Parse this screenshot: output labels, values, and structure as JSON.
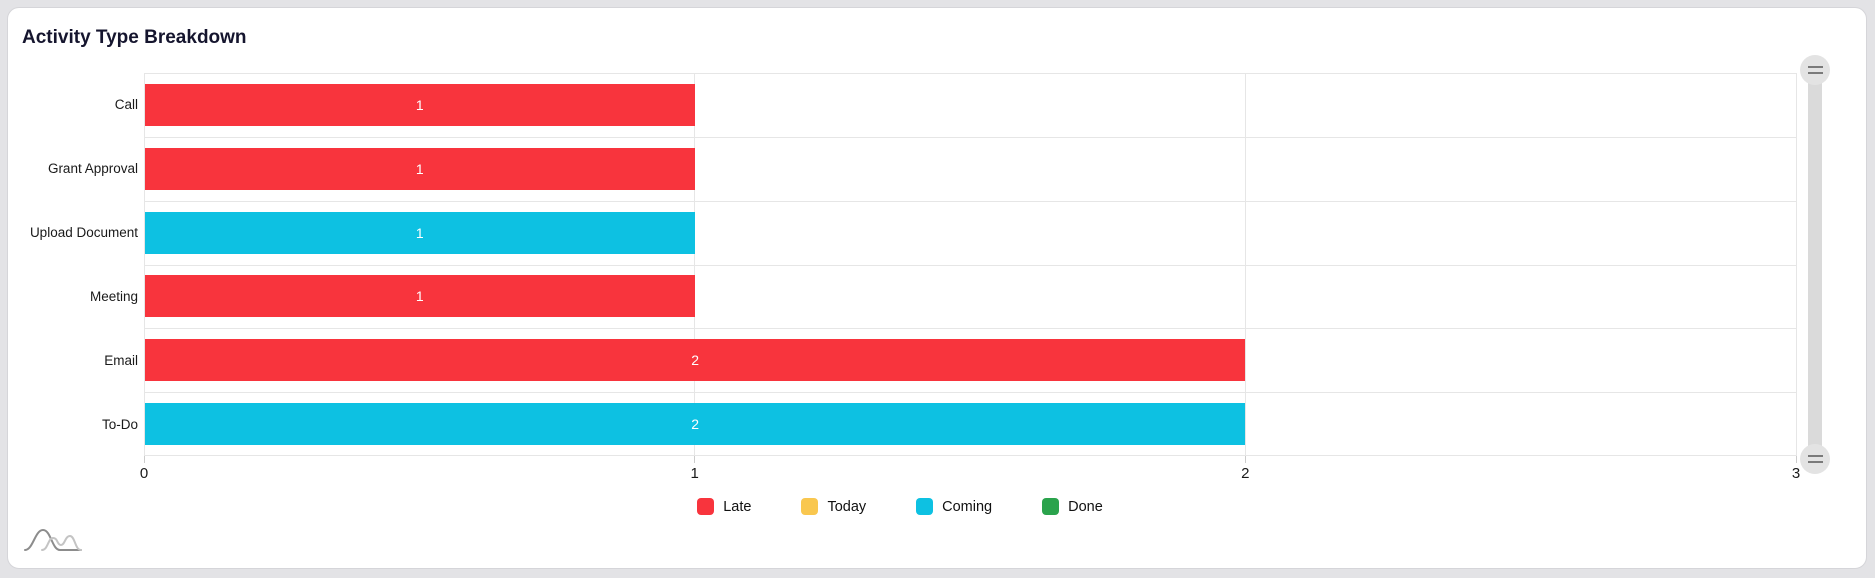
{
  "page": {
    "background_color": "#e3e3e6"
  },
  "card": {
    "background_color": "#ffffff",
    "border_color": "#d5d5d9"
  },
  "chart_data": {
    "type": "bar",
    "orientation": "horizontal",
    "title": "Activity Type Breakdown",
    "categories": [
      "Call",
      "Grant Approval",
      "Upload Document",
      "Meeting",
      "Email",
      "To-Do"
    ],
    "values": [
      1,
      1,
      1,
      1,
      2,
      2
    ],
    "value_labels": [
      "1",
      "1",
      "1",
      "1",
      "2",
      "2"
    ],
    "bar_status": [
      "Late",
      "Late",
      "Coming",
      "Late",
      "Late",
      "Coming"
    ],
    "series_colors": {
      "Late": "#f8343d",
      "Today": "#f9c74f",
      "Coming": "#0dc1e2",
      "Done": "#2aa34c"
    },
    "x_ticks": [
      0,
      1,
      2,
      3
    ],
    "xlim": [
      0,
      3
    ],
    "xlabel": "",
    "ylabel": "",
    "grid": true,
    "legend": {
      "position": "bottom",
      "items": [
        "Late",
        "Today",
        "Coming",
        "Done"
      ]
    }
  },
  "icons": {
    "scrollbar_grip": "drag-handle-icon",
    "watermark": "amcharts-logo"
  }
}
